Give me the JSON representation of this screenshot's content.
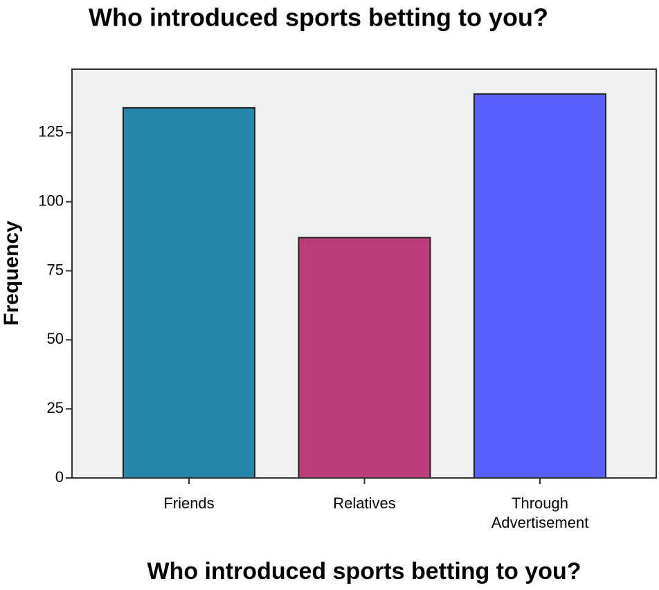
{
  "chart_data": {
    "type": "bar",
    "title": "Who introduced sports betting to you?",
    "x_label": "Who introduced sports betting to you?",
    "y_label": "Frequency",
    "categories": [
      "Friends",
      "Relatives",
      "Through Advertisement"
    ],
    "values": [
      134,
      87,
      139
    ],
    "colors": [
      "#2587a8",
      "#bb3d7a",
      "#5a5ffc"
    ],
    "ylim": [
      0,
      148
    ],
    "yticks": [
      0,
      25,
      50,
      75,
      100,
      125
    ],
    "grid": false
  }
}
